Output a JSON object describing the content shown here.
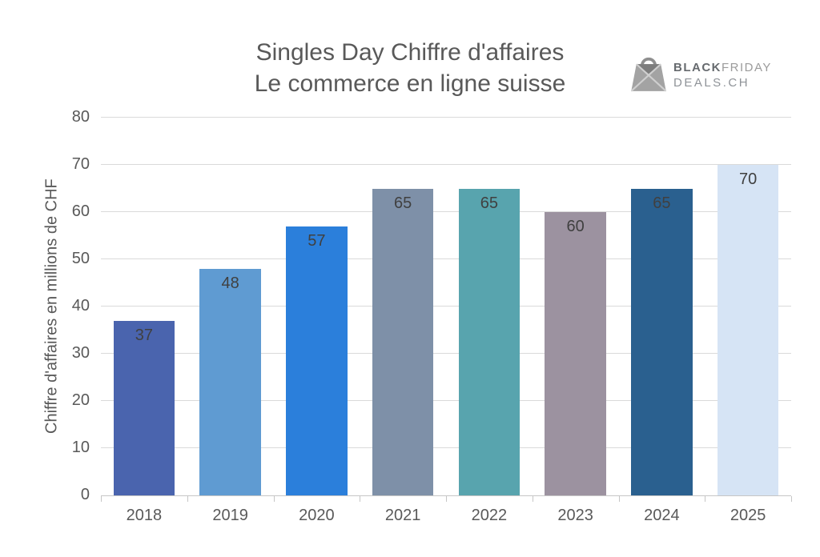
{
  "header": {
    "title_line1": "Singles Day Chiffre d'affaires",
    "title_line2": "Le commerce en ligne suisse"
  },
  "logo": {
    "icon": "shopping-bag-icon",
    "brand_bold": "BLACK",
    "brand_light": "FRIDAY",
    "brand_line2": "DEALS.CH"
  },
  "chart_data": {
    "type": "bar",
    "title": "Singles Day Chiffre d'affaires — Le commerce en ligne suisse",
    "categories": [
      "2018",
      "2019",
      "2020",
      "2021",
      "2022",
      "2023",
      "2024",
      "2025"
    ],
    "values": [
      37,
      48,
      57,
      65,
      65,
      60,
      65,
      70
    ],
    "bar_colors": [
      "#4a64ae",
      "#5f9bd2",
      "#2b7fdb",
      "#7e90a8",
      "#58a4ae",
      "#9c92a0",
      "#2a608f",
      "#d6e4f5"
    ],
    "xlabel": "",
    "ylabel": "Chiffre d'affaires en millions de CHF",
    "ylim": [
      0,
      80
    ],
    "yticks": [
      0,
      10,
      20,
      30,
      40,
      50,
      60,
      70,
      80
    ],
    "grid": "horizontal",
    "legend": "none",
    "value_label_color": "#404040",
    "axis_text_color": "#595959",
    "gridline_color": "#dadada"
  }
}
